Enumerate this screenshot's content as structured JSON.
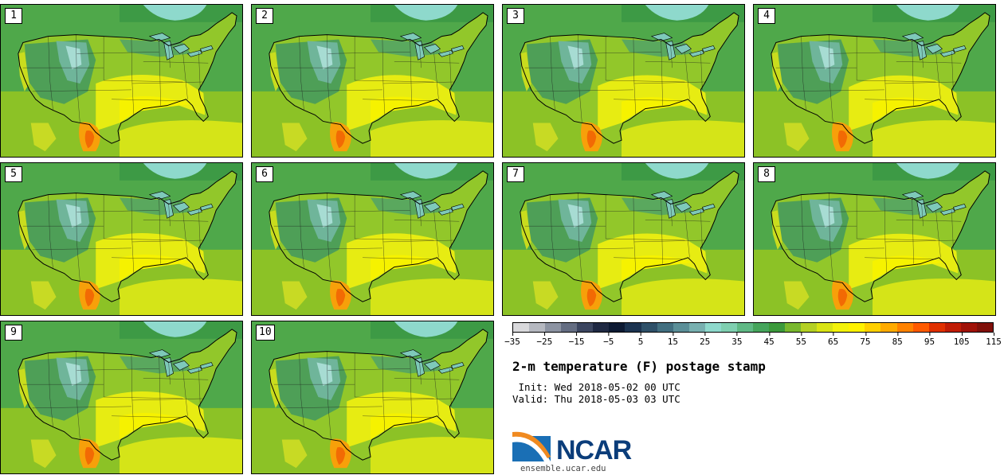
{
  "panels": [
    {
      "label": "1"
    },
    {
      "label": "2"
    },
    {
      "label": "3"
    },
    {
      "label": "4"
    },
    {
      "label": "5"
    },
    {
      "label": "6"
    },
    {
      "label": "7"
    },
    {
      "label": "8"
    },
    {
      "label": "9"
    },
    {
      "label": "10"
    }
  ],
  "colorbar": {
    "colors": [
      "#d9d9dc",
      "#b5b8c0",
      "#8c93a2",
      "#646d82",
      "#3c4660",
      "#1f2943",
      "#0d1a33",
      "#1b3350",
      "#2e5068",
      "#426f80",
      "#5b8f98",
      "#78b0b0",
      "#8ed9cc",
      "#7fcfb0",
      "#60b985",
      "#46a55c",
      "#3c9a3c",
      "#79b82e",
      "#b4d024",
      "#d9e414",
      "#f3f20a",
      "#fff200",
      "#ffd000",
      "#ffab00",
      "#ff8200",
      "#ff5a00",
      "#e03000",
      "#c01c05",
      "#a01208",
      "#80100a"
    ],
    "ticks": [
      "−35",
      "−25",
      "−15",
      "−5",
      "5",
      "15",
      "25",
      "35",
      "45",
      "55",
      "65",
      "75",
      "85",
      "95",
      "105",
      "115"
    ]
  },
  "title": "2-m temperature (F) postage stamp",
  "init": " Init: Wed 2018-05-02 00 UTC",
  "valid": "Valid: Thu 2018-05-03 03 UTC",
  "logo": {
    "text": "NCAR",
    "url": "ensemble.ucar.edu"
  }
}
